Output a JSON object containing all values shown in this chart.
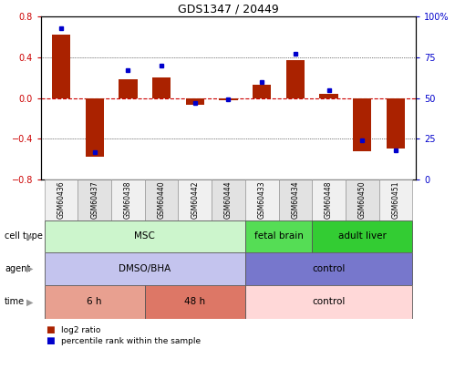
{
  "title": "GDS1347 / 20449",
  "samples": [
    "GSM60436",
    "GSM60437",
    "GSM60438",
    "GSM60440",
    "GSM60442",
    "GSM60444",
    "GSM60433",
    "GSM60434",
    "GSM60448",
    "GSM60450",
    "GSM60451"
  ],
  "log2_ratio": [
    0.62,
    -0.58,
    0.18,
    0.2,
    -0.07,
    -0.02,
    0.13,
    0.37,
    0.04,
    -0.52,
    -0.5
  ],
  "percentile_rank": [
    93,
    17,
    67,
    70,
    47,
    49,
    60,
    77,
    55,
    24,
    18
  ],
  "ylim": [
    -0.8,
    0.8
  ],
  "y2lim": [
    0,
    100
  ],
  "yticks": [
    -0.8,
    -0.4,
    0.0,
    0.4,
    0.8
  ],
  "y2ticks": [
    0,
    25,
    50,
    75,
    100
  ],
  "y2ticklabels": [
    "0",
    "25",
    "50",
    "75",
    "100%"
  ],
  "bar_color": "#aa2200",
  "dot_color": "#0000cc",
  "zero_line_color": "#cc0000",
  "grid_color": "#000000",
  "cell_type_groups": [
    {
      "label": "MSC",
      "start": 0,
      "end": 6,
      "color": "#ccf5cc"
    },
    {
      "label": "fetal brain",
      "start": 6,
      "end": 8,
      "color": "#55dd55"
    },
    {
      "label": "adult liver",
      "start": 8,
      "end": 11,
      "color": "#33cc33"
    }
  ],
  "agent_groups": [
    {
      "label": "DMSO/BHA",
      "start": 0,
      "end": 6,
      "color": "#c4c4ee"
    },
    {
      "label": "control",
      "start": 6,
      "end": 11,
      "color": "#7777cc"
    }
  ],
  "time_groups": [
    {
      "label": "6 h",
      "start": 0,
      "end": 3,
      "color": "#e8a090"
    },
    {
      "label": "48 h",
      "start": 3,
      "end": 6,
      "color": "#dd7766"
    },
    {
      "label": "control",
      "start": 6,
      "end": 11,
      "color": "#ffd8d8"
    }
  ],
  "ann_row_labels": [
    "cell type",
    "agent",
    "time"
  ],
  "legend_items": [
    {
      "label": "log2 ratio",
      "color": "#aa2200"
    },
    {
      "label": "percentile rank within the sample",
      "color": "#0000cc"
    }
  ],
  "bg_color": "#ffffff",
  "tick_label_color_left": "#cc0000",
  "tick_label_color_right": "#0000cc",
  "label_fontsize": 7,
  "ann_fontsize": 7.5,
  "title_fontsize": 9
}
